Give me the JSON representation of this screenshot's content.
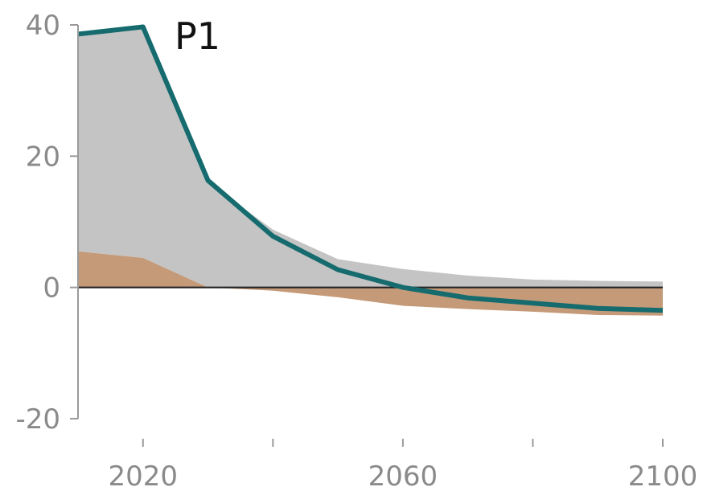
{
  "chart_data": {
    "type": "area",
    "title": "P1",
    "xlabel": "",
    "ylabel": "",
    "x": [
      2010,
      2020,
      2030,
      2040,
      2050,
      2060,
      2070,
      2080,
      2090,
      2100
    ],
    "xlim": [
      2010,
      2100
    ],
    "ylim": [
      -20,
      40
    ],
    "x_ticks": [
      2020,
      2040,
      2060,
      2080,
      2100
    ],
    "x_tick_labels": [
      "2020",
      "",
      "2060",
      "",
      "2100"
    ],
    "y_ticks": [
      -20,
      0,
      20,
      40
    ],
    "y_tick_labels": [
      "-20",
      "0",
      "20",
      "40"
    ],
    "series": [
      {
        "kind": "stacked-area",
        "values": [
          5.5,
          4.5,
          0,
          -0.5,
          -1.5,
          -2.8,
          -3.3,
          -3.7,
          -4.2,
          -4.3
        ]
      },
      {
        "kind": "stacked-area",
        "values": [
          33.2,
          35.2,
          16.0,
          8.8,
          4.3,
          2.8,
          1.8,
          1.2,
          1.0,
          0.9
        ]
      },
      {
        "kind": "line",
        "values": [
          38.6,
          39.7,
          16.3,
          7.8,
          2.7,
          0.0,
          -1.6,
          -2.4,
          -3.2,
          -3.5
        ]
      }
    ],
    "colors": {
      "lower_area": "#c49a78",
      "upper_area": "#c4c4c4",
      "line": "#156b6e",
      "zero_line": "#222222",
      "axis": "#9a9a9a",
      "tick_text": "#8a8a8a"
    },
    "grid": false,
    "legend": "none"
  }
}
